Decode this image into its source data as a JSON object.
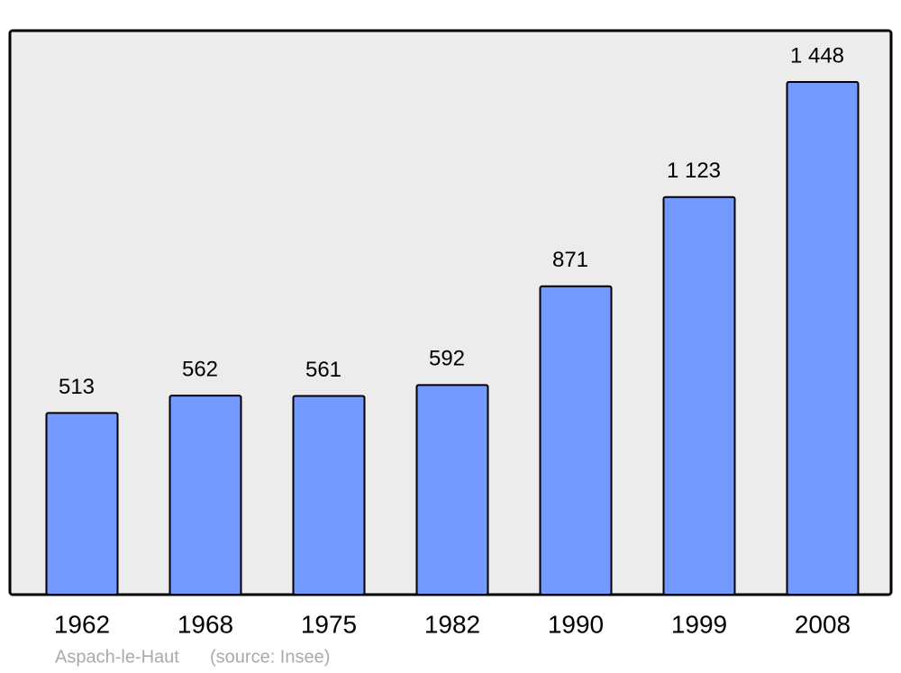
{
  "chart_data": {
    "type": "bar",
    "categories": [
      "1962",
      "1968",
      "1975",
      "1982",
      "1990",
      "1999",
      "2008"
    ],
    "values": [
      513,
      562,
      561,
      592,
      871,
      1123,
      1448
    ],
    "value_labels": [
      "513",
      "562",
      "561",
      "592",
      "871",
      "1 123",
      "1 448"
    ],
    "color": "#7499ff",
    "ylim": [
      0,
      1593
    ],
    "place": "Aspach-le-Haut",
    "source": "(source: Insee)"
  }
}
